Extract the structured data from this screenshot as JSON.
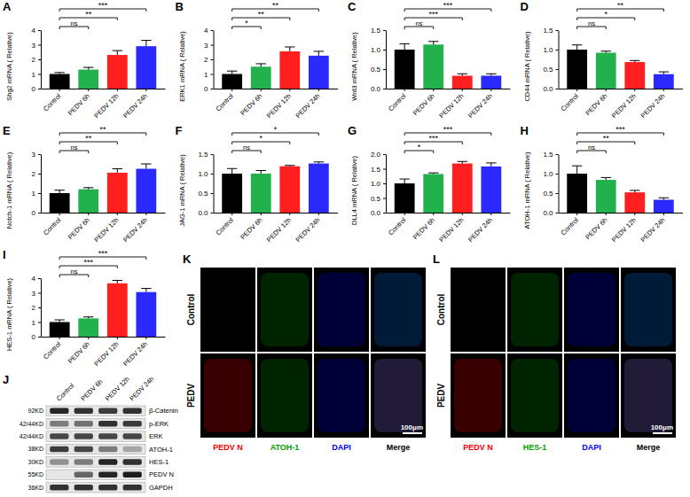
{
  "chart_data": [
    {
      "panel": "A",
      "type": "bar",
      "ylabel": "Shg2 mRNA ( Relative)",
      "categories": [
        "Control",
        "PEDV 6h",
        "PEDV 12h",
        "PEDV 24h"
      ],
      "values": [
        1.0,
        1.3,
        2.3,
        2.9
      ],
      "errors": [
        0.1,
        0.15,
        0.3,
        0.4
      ],
      "colors": [
        "#000000",
        "#22b14c",
        "#ff1f1f",
        "#2a2aff"
      ],
      "ylim": [
        0,
        4
      ],
      "yticks": [
        0,
        1,
        2,
        3,
        4
      ],
      "annotations": [
        {
          "text": "ns",
          "between": [
            "Control",
            "PEDV 6h"
          ]
        },
        {
          "text": "**",
          "between": [
            "Control",
            "PEDV 12h"
          ]
        },
        {
          "text": "***",
          "between": [
            "Control",
            "PEDV 24h"
          ]
        }
      ]
    },
    {
      "panel": "B",
      "type": "bar",
      "ylabel": "ERK1 mRNA ( Relative)",
      "categories": [
        "Control",
        "PEDV 6h",
        "PEDV 12h",
        "PEDV 24h"
      ],
      "values": [
        1.0,
        1.5,
        2.55,
        2.25
      ],
      "errors": [
        0.2,
        0.2,
        0.3,
        0.3
      ],
      "colors": [
        "#000000",
        "#22b14c",
        "#ff1f1f",
        "#2a2aff"
      ],
      "ylim": [
        0,
        4
      ],
      "yticks": [
        0,
        1,
        2,
        3,
        4
      ],
      "annotations": [
        {
          "text": "*",
          "between": [
            "Control",
            "PEDV 6h"
          ]
        },
        {
          "text": "**",
          "between": [
            "Control",
            "PEDV 12h"
          ]
        },
        {
          "text": "**",
          "between": [
            "Control",
            "PEDV 24h"
          ]
        }
      ]
    },
    {
      "panel": "C",
      "type": "bar",
      "ylabel": "Wnt3 mRNA ( Relative)",
      "categories": [
        "Control",
        "PEDV 6h",
        "PEDV 12h",
        "PEDV 24h"
      ],
      "values": [
        1.0,
        1.13,
        0.33,
        0.33
      ],
      "errors": [
        0.15,
        0.08,
        0.05,
        0.05
      ],
      "colors": [
        "#000000",
        "#22b14c",
        "#ff1f1f",
        "#2a2aff"
      ],
      "ylim": [
        0,
        1.5
      ],
      "yticks": [
        {
          "value": 0,
          "label": "0.0"
        },
        0.5,
        {
          "value": 1,
          "label": "1.0"
        },
        1.5
      ],
      "annotations": [
        {
          "text": "ns",
          "between": [
            "Control",
            "PEDV 6h"
          ]
        },
        {
          "text": "***",
          "between": [
            "Control",
            "PEDV 12h"
          ]
        },
        {
          "text": "***",
          "between": [
            "Control",
            "PEDV 24h"
          ]
        }
      ]
    },
    {
      "panel": "D",
      "type": "bar",
      "ylabel": "CD44 mRNA ( Relative)",
      "categories": [
        "Control",
        "PEDV 6h",
        "PEDV 12h",
        "PEDV 24h"
      ],
      "values": [
        1.0,
        0.92,
        0.68,
        0.37
      ],
      "errors": [
        0.12,
        0.04,
        0.04,
        0.06
      ],
      "colors": [
        "#000000",
        "#22b14c",
        "#ff1f1f",
        "#2a2aff"
      ],
      "ylim": [
        0,
        1.5
      ],
      "yticks": [
        {
          "value": 0,
          "label": "0.0"
        },
        0.5,
        {
          "value": 1,
          "label": "1.0"
        },
        1.5
      ],
      "annotations": [
        {
          "text": "ns",
          "between": [
            "Control",
            "PEDV 6h"
          ]
        },
        {
          "text": "*",
          "between": [
            "Control",
            "PEDV 12h"
          ]
        },
        {
          "text": "**",
          "between": [
            "Control",
            "PEDV 24h"
          ]
        }
      ]
    },
    {
      "panel": "E",
      "type": "bar",
      "ylabel": "Notch-1 mRNA ( Relative)",
      "categories": [
        "Control",
        "PEDV 6h",
        "PEDV 12h",
        "PEDV 24h"
      ],
      "values": [
        1.0,
        1.2,
        2.05,
        2.25
      ],
      "errors": [
        0.15,
        0.08,
        0.2,
        0.25
      ],
      "colors": [
        "#000000",
        "#22b14c",
        "#ff1f1f",
        "#2a2aff"
      ],
      "ylim": [
        0,
        3
      ],
      "yticks": [
        0,
        1,
        2,
        3
      ],
      "annotations": [
        {
          "text": "ns",
          "between": [
            "Control",
            "PEDV 6h"
          ]
        },
        {
          "text": "**",
          "between": [
            "Control",
            "PEDV 12h"
          ]
        },
        {
          "text": "**",
          "between": [
            "Control",
            "PEDV 24h"
          ]
        }
      ]
    },
    {
      "panel": "F",
      "type": "bar",
      "ylabel": "JAG-1 mRNA ( Relative)",
      "categories": [
        "Control",
        "PEDV 6h",
        "PEDV 12h",
        "PEDV 24h"
      ],
      "values": [
        1.0,
        1.0,
        1.19,
        1.26
      ],
      "errors": [
        0.13,
        0.08,
        0.02,
        0.04
      ],
      "colors": [
        "#000000",
        "#22b14c",
        "#ff1f1f",
        "#2a2aff"
      ],
      "ylim": [
        0,
        1.5
      ],
      "yticks": [
        {
          "value": 0,
          "label": "0.0"
        },
        0.5,
        {
          "value": 1,
          "label": "1.0"
        },
        1.5
      ],
      "annotations": [
        {
          "text": "ns",
          "between": [
            "Control",
            "PEDV 6h"
          ]
        },
        {
          "text": "*",
          "between": [
            "Control",
            "PEDV 12h"
          ]
        },
        {
          "text": "*",
          "between": [
            "Control",
            "PEDV 24h"
          ]
        }
      ]
    },
    {
      "panel": "G",
      "type": "bar",
      "ylabel": "DLL4 mRNA ( Relative)",
      "categories": [
        "Control",
        "PEDV 6h",
        "PEDV 12h",
        "PEDV 24h"
      ],
      "values": [
        1.0,
        1.32,
        1.68,
        1.58
      ],
      "errors": [
        0.15,
        0.04,
        0.07,
        0.12
      ],
      "colors": [
        "#000000",
        "#22b14c",
        "#ff1f1f",
        "#2a2aff"
      ],
      "ylim": [
        0,
        2
      ],
      "yticks": [
        {
          "value": 0,
          "label": "0.0"
        },
        0.5,
        {
          "value": 1,
          "label": "1.0"
        },
        1.5,
        {
          "value": 2,
          "label": "2.0"
        }
      ],
      "annotations": [
        {
          "text": "*",
          "between": [
            "Control",
            "PEDV 6h"
          ]
        },
        {
          "text": "***",
          "between": [
            "Control",
            "PEDV 12h"
          ]
        },
        {
          "text": "***",
          "between": [
            "Control",
            "PEDV 24h"
          ]
        }
      ]
    },
    {
      "panel": "H",
      "type": "bar",
      "ylabel": "ATOH-1 mRNA ( Relative)",
      "categories": [
        "Control",
        "PEDV 6h",
        "PEDV 12h",
        "PEDV 24h"
      ],
      "values": [
        1.0,
        0.84,
        0.52,
        0.33
      ],
      "errors": [
        0.2,
        0.06,
        0.05,
        0.05
      ],
      "colors": [
        "#000000",
        "#22b14c",
        "#ff1f1f",
        "#2a2aff"
      ],
      "ylim": [
        0,
        1.5
      ],
      "yticks": [
        {
          "value": 0,
          "label": "0.0"
        },
        0.5,
        {
          "value": 1,
          "label": "1.0"
        },
        1.5
      ],
      "annotations": [
        {
          "text": "ns",
          "between": [
            "Control",
            "PEDV 6h"
          ]
        },
        {
          "text": "**",
          "between": [
            "Control",
            "PEDV 12h"
          ]
        },
        {
          "text": "***",
          "between": [
            "Control",
            "PEDV 24h"
          ]
        }
      ]
    },
    {
      "panel": "I",
      "type": "bar",
      "ylabel": "HES-1 mRNA ( Relative)",
      "categories": [
        "Control",
        "PEDV 6h",
        "PEDV 12h",
        "PEDV 24h"
      ],
      "values": [
        1.0,
        1.25,
        3.65,
        3.05
      ],
      "errors": [
        0.15,
        0.1,
        0.2,
        0.25
      ],
      "colors": [
        "#000000",
        "#22b14c",
        "#ff1f1f",
        "#2a2aff"
      ],
      "ylim": [
        0,
        4
      ],
      "yticks": [
        0,
        1,
        2,
        3,
        4
      ],
      "annotations": [
        {
          "text": "ns",
          "between": [
            "Control",
            "PEDV 6h"
          ]
        },
        {
          "text": "***",
          "between": [
            "Control",
            "PEDV 12h"
          ]
        },
        {
          "text": "***",
          "between": [
            "Control",
            "PEDV 24h"
          ]
        }
      ]
    }
  ],
  "blot": {
    "panel": "J",
    "lanes": [
      "Control",
      "PEDV 6h",
      "PEDV 12h",
      "PEDV 24h"
    ],
    "rows": [
      {
        "size": "92KD",
        "protein": "β-Catenin",
        "intensity": [
          0.9,
          0.85,
          0.8,
          0.85
        ]
      },
      {
        "size": "42/44KD",
        "protein": "p-ERK",
        "intensity": [
          0.5,
          0.55,
          0.85,
          0.8
        ]
      },
      {
        "size": "42/44KD",
        "protein": "ERK",
        "intensity": [
          0.75,
          0.75,
          0.75,
          0.75
        ]
      },
      {
        "size": "38KD",
        "protein": "ATOH-1",
        "intensity": [
          0.8,
          0.75,
          0.5,
          0.3
        ]
      },
      {
        "size": "30KD",
        "protein": "HES-1",
        "intensity": [
          0.4,
          0.5,
          0.9,
          0.85
        ]
      },
      {
        "size": "55KD",
        "protein": "PEDV N",
        "intensity": [
          0,
          0.6,
          0.9,
          0.95
        ]
      },
      {
        "size": "36KD",
        "protein": "GAPDH",
        "intensity": [
          0.85,
          0.85,
          0.85,
          0.85
        ]
      }
    ]
  },
  "micrographs": [
    {
      "panel": "K",
      "rows": [
        "Control",
        "PEDV"
      ],
      "channels": [
        {
          "name": "PEDV N",
          "color": "#ff0000"
        },
        {
          "name": "ATOH-1",
          "color": "#00a000"
        },
        {
          "name": "DAPI",
          "color": "#0000ff"
        },
        {
          "name": "Merge",
          "color": "#000000"
        }
      ],
      "scale_bar": "100μm"
    },
    {
      "panel": "L",
      "rows": [
        "Control",
        "PEDV"
      ],
      "channels": [
        {
          "name": "PEDV N",
          "color": "#ff0000"
        },
        {
          "name": "HES-1",
          "color": "#00a000"
        },
        {
          "name": "DAPI",
          "color": "#0000ff"
        },
        {
          "name": "Merge",
          "color": "#000000"
        }
      ],
      "scale_bar": "100μm"
    }
  ]
}
